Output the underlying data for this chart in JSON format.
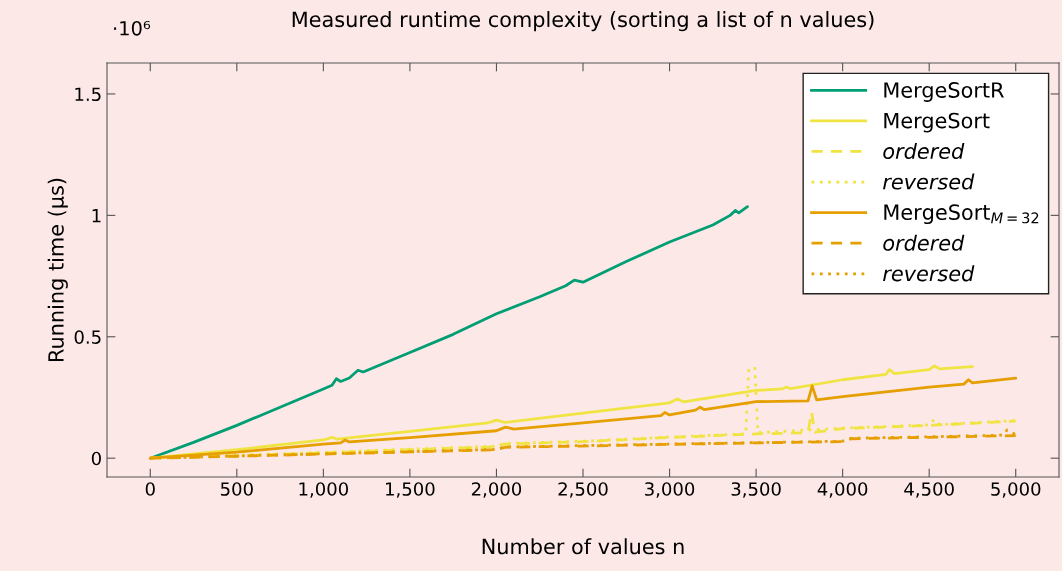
{
  "chart_data": {
    "type": "line",
    "title": "Measured runtime complexity (sorting a list of n values)",
    "xlabel": "Number of values n",
    "ylabel": "Running time (µs)",
    "annotations": [
      "·10⁶"
    ],
    "xlim": [
      -250,
      5250
    ],
    "ylim": [
      -0.0775,
      1.6275
    ],
    "xticks": [
      0,
      500,
      {
        "value": 1000,
        "label": "1,000"
      },
      {
        "value": 1500,
        "label": "1,500"
      },
      {
        "value": 2000,
        "label": "2,000"
      },
      {
        "value": 2500,
        "label": "2,500"
      },
      {
        "value": 3000,
        "label": "3,000"
      },
      {
        "value": 3500,
        "label": "3,500"
      },
      {
        "value": 4000,
        "label": "4,000"
      },
      {
        "value": 4500,
        "label": "4,500"
      },
      {
        "value": 5000,
        "label": "5,000"
      }
    ],
    "yticks": [
      0,
      0.5,
      1,
      1.5
    ],
    "grid": false,
    "legend": "top right",
    "marker": "none",
    "series": [
      {
        "name": "MergeSortR",
        "color": "#009e73",
        "line_style": "solid",
        "x": [
          0,
          250,
          500,
          750,
          1000,
          1050,
          1075,
          1100,
          1150,
          1200,
          1230,
          1500,
          1750,
          2000,
          2250,
          2400,
          2450,
          2500,
          2750,
          3000,
          3250,
          3350,
          3380,
          3400,
          3450
        ],
        "values": [
          0,
          0.065,
          0.135,
          0.21,
          0.285,
          0.3,
          0.327,
          0.316,
          0.33,
          0.362,
          0.355,
          0.435,
          0.51,
          0.595,
          0.665,
          0.71,
          0.733,
          0.725,
          0.81,
          0.89,
          0.96,
          1.0,
          1.02,
          1.01,
          1.036
        ]
      },
      {
        "name": "MergeSort",
        "color": "#f0e442",
        "line_style": "solid",
        "x": [
          0,
          500,
          1000,
          1050,
          1080,
          1500,
          1950,
          2000,
          2050,
          2500,
          3000,
          3045,
          3080,
          3500,
          3650,
          3676,
          3700,
          4000,
          4250,
          4270,
          4300,
          4500,
          4530,
          4560,
          4750
        ],
        "values": [
          0,
          0.035,
          0.075,
          0.086,
          0.078,
          0.11,
          0.145,
          0.157,
          0.147,
          0.186,
          0.228,
          0.244,
          0.232,
          0.279,
          0.285,
          0.293,
          0.286,
          0.323,
          0.345,
          0.365,
          0.348,
          0.365,
          0.38,
          0.368,
          0.377
        ]
      },
      {
        "name": "ordered",
        "color": "#f0e442",
        "line_style": "dashed",
        "x": [
          0,
          500,
          1000,
          1500,
          2000,
          2040,
          2500,
          3000,
          3500,
          3800,
          3820,
          3840,
          4000,
          4500,
          5000
        ],
        "values": [
          0,
          0.01,
          0.022,
          0.035,
          0.047,
          0.058,
          0.068,
          0.085,
          0.1,
          0.105,
          0.19,
          0.107,
          0.122,
          0.135,
          0.153
        ]
      },
      {
        "name": "reversed",
        "color": "#f0e442",
        "line_style": "dotted",
        "x": [
          0,
          500,
          1000,
          1500,
          2000,
          2040,
          2500,
          3000,
          3440,
          3458,
          3493,
          3510,
          4000,
          4500,
          4530,
          4560,
          5000
        ],
        "values": [
          0,
          0.012,
          0.024,
          0.037,
          0.049,
          0.06,
          0.07,
          0.087,
          0.1,
          0.37,
          0.37,
          0.105,
          0.124,
          0.137,
          0.16,
          0.138,
          0.155
        ]
      },
      {
        "name": "MergeSort$_{M=32}$",
        "color": "#e69f00",
        "line_style": "solid",
        "x": [
          0,
          500,
          1000,
          1100,
          1126,
          1150,
          1500,
          2000,
          2052,
          2100,
          2500,
          2950,
          2973,
          3000,
          3150,
          3177,
          3200,
          3500,
          3800,
          3824,
          3850,
          4000,
          4500,
          4700,
          4727,
          4750,
          5000
        ],
        "values": [
          0,
          0.025,
          0.058,
          0.063,
          0.075,
          0.067,
          0.085,
          0.113,
          0.128,
          0.12,
          0.145,
          0.175,
          0.188,
          0.178,
          0.198,
          0.21,
          0.2,
          0.233,
          0.236,
          0.298,
          0.24,
          0.254,
          0.293,
          0.305,
          0.323,
          0.31,
          0.33
        ]
      },
      {
        "name": "ordered",
        "color": "#e69f00",
        "line_style": "dashed",
        "x": [
          0,
          500,
          1000,
          1500,
          2000,
          2050,
          2500,
          3000,
          3500,
          4000,
          4050,
          4500,
          5000
        ],
        "values": [
          0,
          0.008,
          0.017,
          0.026,
          0.035,
          0.045,
          0.05,
          0.057,
          0.063,
          0.068,
          0.08,
          0.086,
          0.093
        ]
      },
      {
        "name": "reversed",
        "color": "#e69f00",
        "line_style": "dotted",
        "x": [
          0,
          500,
          1000,
          1500,
          2000,
          2050,
          2500,
          3000,
          3500,
          4000,
          4050,
          4500,
          4930,
          4950,
          5000
        ],
        "values": [
          0,
          0.009,
          0.018,
          0.027,
          0.036,
          0.046,
          0.052,
          0.058,
          0.064,
          0.07,
          0.082,
          0.088,
          0.095,
          0.116,
          0.097
        ]
      }
    ]
  }
}
